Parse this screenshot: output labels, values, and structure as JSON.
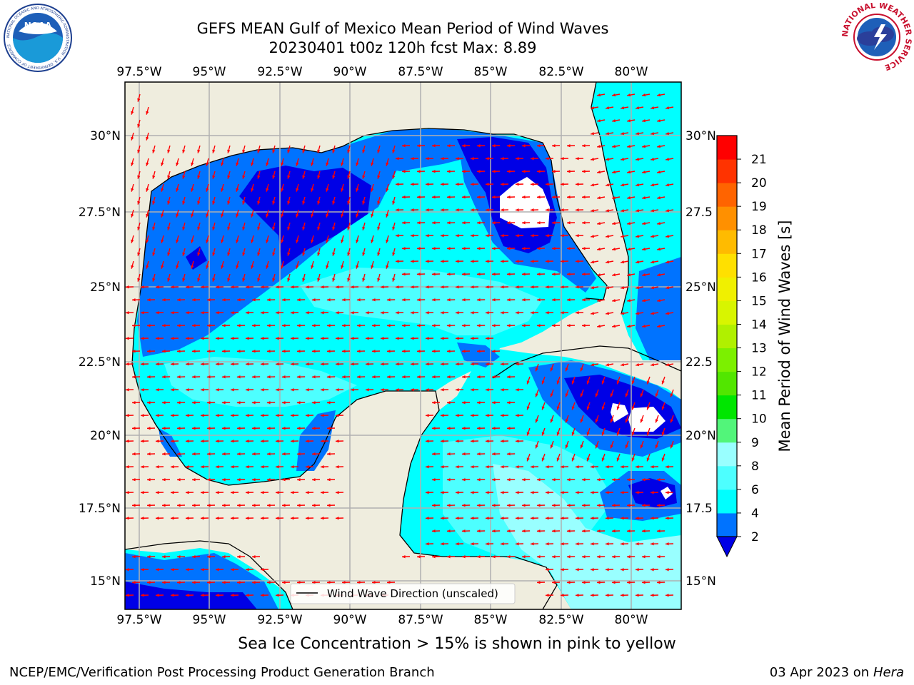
{
  "header": {
    "title_line1": "GEFS MEAN Gulf of Mexico Mean Period of Wind Waves",
    "title_line2": "20230401 t00z 120h fcst   Max: 8.89"
  },
  "logos": {
    "left_text": "NOAA",
    "left_ring_text": "NATIONAL OCEANIC AND ATMOSPHERIC ADMINISTRATION · U.S. DEPARTMENT OF COMMERCE",
    "right_ring_text": "NATIONAL WEATHER SERVICE"
  },
  "map": {
    "lon_labels": [
      "97.5°W",
      "95°W",
      "92.5°W",
      "90°W",
      "87.5°W",
      "85°W",
      "82.5°W",
      "80°W"
    ],
    "lat_labels_left": [
      "30°N",
      "27.5°N",
      "25°N",
      "22.5°N",
      "20°N",
      "17.5°N",
      "15°N"
    ],
    "lat_labels_right": [
      "30°N",
      "27.5",
      "25°N",
      "22.5",
      "20°N",
      "17.5",
      "15°N"
    ],
    "legend_label": "Wind Wave Direction (unscaled)",
    "colors": {
      "land": "#efedde",
      "ocean_2_4": "#0073ff",
      "ocean_lt2": "#0000e6",
      "ocean_4_6": "#00ffff",
      "ocean_6_8": "#4dffff",
      "ocean_8_9": "#99ffff",
      "arrow": "#ff0000"
    }
  },
  "colorbar": {
    "label": "Mean Period of Wind Waves [s]",
    "ticks": [
      "2",
      "4",
      "6",
      "8",
      "9",
      "10",
      "11",
      "12",
      "13",
      "14",
      "15",
      "16",
      "17",
      "18",
      "19",
      "20",
      "21"
    ],
    "colors": [
      "#0073ff",
      "#00ffff",
      "#4dffff",
      "#99ffff",
      "#52f57a",
      "#00e600",
      "#52e600",
      "#7cf000",
      "#b0f000",
      "#d8f500",
      "#f0f000",
      "#ffe000",
      "#ffbb00",
      "#ff9000",
      "#ff6400",
      "#ff3300",
      "#ff0000"
    ],
    "under_color": "#0000e6"
  },
  "footer": {
    "left": "NCEP/EMC/Verification Post Processing Product Generation Branch",
    "right_prefix": "03 Apr 2023 on ",
    "right_host": "Hera"
  },
  "note": "Sea Ice Concentration > 15% is shown in pink to yellow"
}
